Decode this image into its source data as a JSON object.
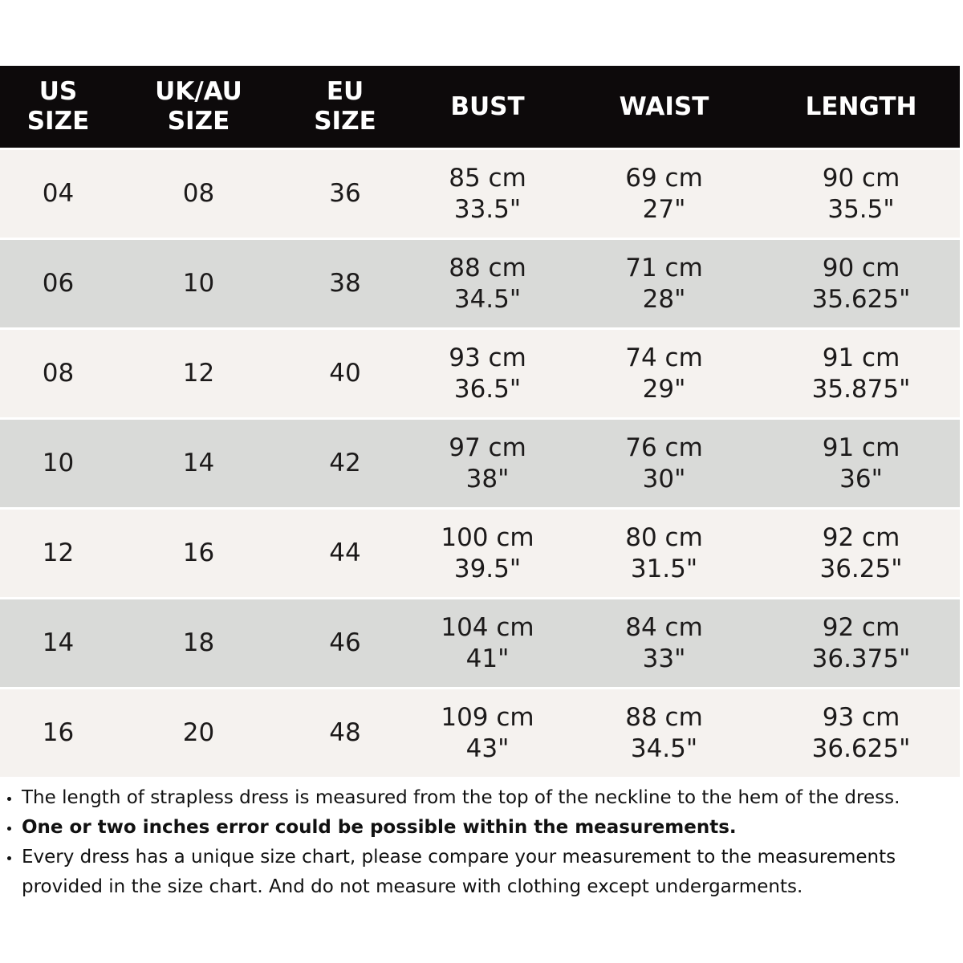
{
  "table": {
    "headers": [
      {
        "id": "us",
        "label": "US\nSIZE"
      },
      {
        "id": "uk_au",
        "label": "UK/AU\nSIZE"
      },
      {
        "id": "eu",
        "label": "EU\nSIZE"
      },
      {
        "id": "bust",
        "label": "BUST"
      },
      {
        "id": "waist",
        "label": "WAIST"
      },
      {
        "id": "length",
        "label": "LENGTH"
      }
    ],
    "rows": [
      {
        "us": "04",
        "uk_au": "08",
        "eu": "36",
        "bust_cm": "85 cm",
        "bust_in": "33.5\"",
        "waist_cm": "69 cm",
        "waist_in": "27\"",
        "length_cm": "90 cm",
        "length_in": "35.5\""
      },
      {
        "us": "06",
        "uk_au": "10",
        "eu": "38",
        "bust_cm": "88 cm",
        "bust_in": "34.5\"",
        "waist_cm": "71 cm",
        "waist_in": "28\"",
        "length_cm": "90 cm",
        "length_in": "35.625\""
      },
      {
        "us": "08",
        "uk_au": "12",
        "eu": "40",
        "bust_cm": "93 cm",
        "bust_in": "36.5\"",
        "waist_cm": "74 cm",
        "waist_in": "29\"",
        "length_cm": "91 cm",
        "length_in": "35.875\""
      },
      {
        "us": "10",
        "uk_au": "14",
        "eu": "42",
        "bust_cm": "97 cm",
        "bust_in": "38\"",
        "waist_cm": "76 cm",
        "waist_in": "30\"",
        "length_cm": "91 cm",
        "length_in": "36\""
      },
      {
        "us": "12",
        "uk_au": "16",
        "eu": "44",
        "bust_cm": "100 cm",
        "bust_in": "39.5\"",
        "waist_cm": "80 cm",
        "waist_in": "31.5\"",
        "length_cm": "92 cm",
        "length_in": "36.25\""
      },
      {
        "us": "14",
        "uk_au": "18",
        "eu": "46",
        "bust_cm": "104 cm",
        "bust_in": "41\"",
        "waist_cm": "84 cm",
        "waist_in": "33\"",
        "length_cm": "92 cm",
        "length_in": "36.375\""
      },
      {
        "us": "16",
        "uk_au": "20",
        "eu": "48",
        "bust_cm": "109 cm",
        "bust_in": "43\"",
        "waist_cm": "88 cm",
        "waist_in": "34.5\"",
        "length_cm": "93 cm",
        "length_in": "36.625\""
      }
    ]
  },
  "notes": [
    {
      "text": "The length of strapless dress is measured from the top of the neckline to the hem of the dress.",
      "bold": false
    },
    {
      "text": "One or two inches error could be possible within the measurements.",
      "bold": true
    },
    {
      "text": "Every dress has a unique size chart, please compare your measurement to the measurements provided in the size chart. And do not measure with clothing except undergarments.",
      "bold": false
    }
  ],
  "colors": {
    "header_bg": "#0d0a0b",
    "header_text": "#ffffff",
    "row_light": "#f5f2ef",
    "row_dark": "#d9dad8",
    "row_text": "#1c1a1a",
    "note_text": "#111111",
    "page_bg": "#ffffff"
  }
}
